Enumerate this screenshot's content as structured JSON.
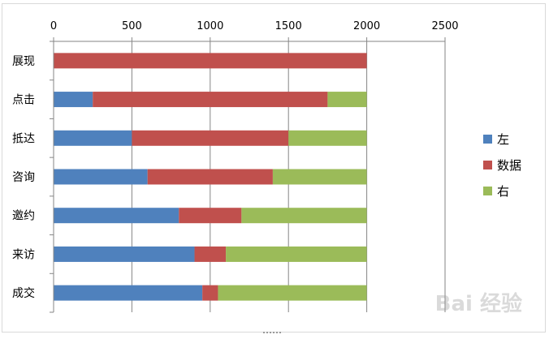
{
  "chart_data": {
    "type": "bar",
    "orientation": "horizontal",
    "stacked": true,
    "categories": [
      "展现",
      "点击",
      "抵达",
      "咨询",
      "邀约",
      "来访",
      "成交"
    ],
    "series": [
      {
        "name": "左",
        "color": "#4f81bd",
        "values": [
          0,
          250,
          500,
          600,
          800,
          900,
          950
        ]
      },
      {
        "name": "数据",
        "color": "#c0504d",
        "values": [
          2000,
          1500,
          1000,
          800,
          400,
          200,
          100
        ]
      },
      {
        "name": "右",
        "color": "#9bbb59",
        "values": [
          0,
          250,
          500,
          600,
          800,
          900,
          950
        ]
      }
    ],
    "xlim": [
      0,
      2500
    ],
    "x_ticks": [
      "0",
      "500",
      "1000",
      "1500",
      "2000",
      "2500"
    ],
    "x_axis_position": "top",
    "grid": true,
    "legend_position": "right"
  },
  "watermark": "Bai 经验"
}
